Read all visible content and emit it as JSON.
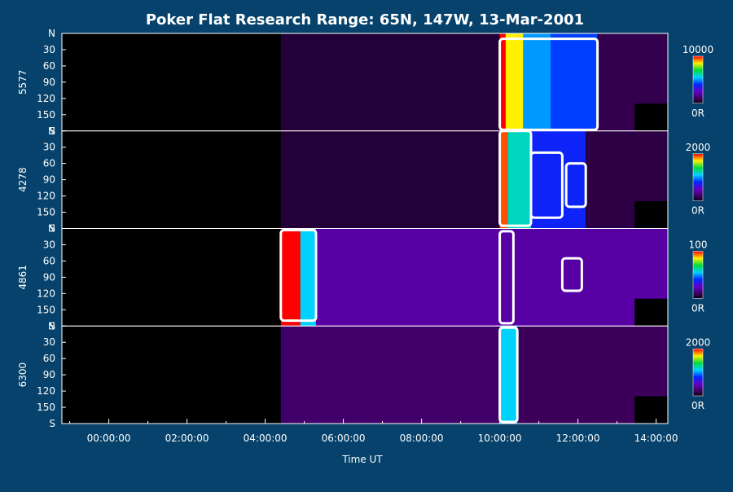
{
  "chart_data": {
    "type": "heatmap",
    "title": "Poker Flat Research Range: 65N, 147W, 13-Mar-2001",
    "xlabel": "Time UT",
    "x_tick_labels": [
      "00:00:00",
      "02:00:00",
      "04:00:00",
      "06:00:00",
      "08:00:00",
      "10:00:00",
      "12:00:00",
      "14:00:00"
    ],
    "x_range_hours": [
      -1.2,
      14.3
    ],
    "y_tick_labels": [
      "N",
      "30",
      "60",
      "90",
      "120",
      "150",
      "S"
    ],
    "y_range_deg": [
      0,
      180
    ],
    "colormap": "rainbow (black-purple-blue-cyan-green-yellow-red)",
    "background_color": "#06426b",
    "contour_color": "#ffffff",
    "panels": [
      {
        "label": "5577",
        "colorbar_max": "10000",
        "colorbar_min": "0R",
        "onset_hour": 4.4,
        "emission": [
          {
            "start": 4.4,
            "end": 10.0,
            "level": 0.05
          },
          {
            "start": 10.0,
            "end": 10.15,
            "level": 1.0
          },
          {
            "start": 10.15,
            "end": 10.6,
            "level": 0.85
          },
          {
            "start": 10.6,
            "end": 11.3,
            "level": 0.5
          },
          {
            "start": 11.3,
            "end": 12.5,
            "level": 0.42
          },
          {
            "start": 12.5,
            "end": 14.3,
            "level": 0.08
          }
        ],
        "contours": [
          {
            "start": 10.0,
            "end": 12.5,
            "lat_min": 10,
            "lat_max": 178
          }
        ]
      },
      {
        "label": "4278",
        "colorbar_max": "2000",
        "colorbar_min": "0R",
        "onset_hour": 4.4,
        "emission": [
          {
            "start": 4.4,
            "end": 10.0,
            "level": 0.05
          },
          {
            "start": 10.0,
            "end": 10.2,
            "level": 0.95
          },
          {
            "start": 10.2,
            "end": 10.8,
            "level": 0.6
          },
          {
            "start": 10.8,
            "end": 12.2,
            "level": 0.38
          },
          {
            "start": 12.2,
            "end": 14.3,
            "level": 0.07
          }
        ],
        "contours": [
          {
            "start": 10.0,
            "end": 10.8,
            "lat_min": 0,
            "lat_max": 175
          },
          {
            "start": 10.8,
            "end": 11.6,
            "lat_min": 40,
            "lat_max": 160
          },
          {
            "start": 11.7,
            "end": 12.2,
            "lat_min": 60,
            "lat_max": 140
          }
        ]
      },
      {
        "label": "4861",
        "colorbar_max": "100",
        "colorbar_min": "0R",
        "onset_hour": 4.4,
        "emission": [
          {
            "start": 4.4,
            "end": 4.9,
            "level": 1.0
          },
          {
            "start": 4.9,
            "end": 5.3,
            "level": 0.55
          },
          {
            "start": 5.3,
            "end": 14.3,
            "level": 0.2
          }
        ],
        "contours": [
          {
            "start": 4.4,
            "end": 5.3,
            "lat_min": 3,
            "lat_max": 170
          },
          {
            "start": 10.0,
            "end": 10.35,
            "lat_min": 5,
            "lat_max": 175
          },
          {
            "start": 11.6,
            "end": 12.1,
            "lat_min": 55,
            "lat_max": 115
          }
        ]
      },
      {
        "label": "6300",
        "colorbar_max": "2000",
        "colorbar_min": "0R",
        "onset_hour": 4.4,
        "emission": [
          {
            "start": 4.4,
            "end": 10.0,
            "level": 0.12
          },
          {
            "start": 10.0,
            "end": 10.45,
            "level": 0.55
          },
          {
            "start": 10.45,
            "end": 14.3,
            "level": 0.1
          }
        ],
        "contours": [
          {
            "start": 10.0,
            "end": 10.45,
            "lat_min": 3,
            "lat_max": 177
          }
        ]
      }
    ]
  }
}
